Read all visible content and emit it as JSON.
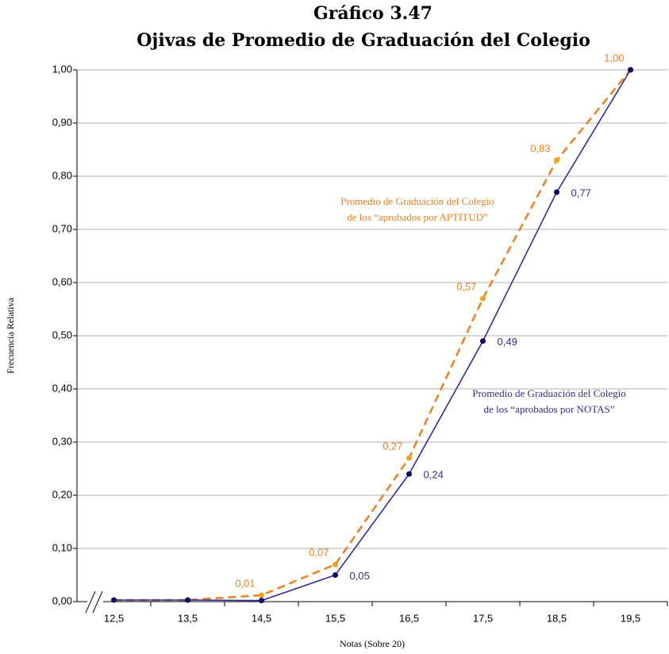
{
  "chart_data": {
    "type": "line",
    "title": [
      "Gráfico 3.47",
      "Ojivas de Promedio de Graduación del Colegio"
    ],
    "x_label": "Notas (Sobre 20)",
    "y_label": "Frecuencia Relativa",
    "categories": [
      "12,5",
      "13,5",
      "14,5",
      "15,5",
      "16,5",
      "17,5",
      "18,5",
      "19,5"
    ],
    "ylim": [
      0,
      1
    ],
    "yticks": [
      {
        "value": 0,
        "label": "0,00"
      },
      {
        "value": 0.1,
        "label": "0,10"
      },
      {
        "value": 0.2,
        "label": "0,20"
      },
      {
        "value": 0.3,
        "label": "0,30"
      },
      {
        "value": 0.4,
        "label": "0,40"
      },
      {
        "value": 0.5,
        "label": "0,50"
      },
      {
        "value": 0.6,
        "label": "0,60"
      },
      {
        "value": 0.7,
        "label": "0,70"
      },
      {
        "value": 0.8,
        "label": "0,80"
      },
      {
        "value": 0.9,
        "label": "0,90"
      },
      {
        "value": 1,
        "label": "1,00"
      }
    ],
    "grid": true,
    "series": [
      {
        "label_lines": [
          "Promedio de Graduación del Colegio",
          "de los “aprobados por APTITUD”"
        ],
        "color": "#f07f1f",
        "marker_color": "#f5a11a",
        "dashed": true,
        "values": [
          0.003,
          0.003,
          0.012,
          0.07,
          0.27,
          0.57,
          0.83,
          1.0
        ],
        "value_labels": [
          null,
          null,
          "0,01",
          "0,07",
          "0,27",
          "0,57",
          "0,83",
          "1,00"
        ]
      },
      {
        "label_lines": [
          "Promedio de Graduación del Colegio",
          "de los “aprobados por NOTAS”"
        ],
        "color": "#2e2e94",
        "marker_color": "#0a0a6e",
        "dashed": false,
        "values": [
          0.003,
          0.003,
          0.002,
          0.05,
          0.24,
          0.49,
          0.77,
          1.0
        ],
        "value_labels": [
          null,
          null,
          null,
          "0,05",
          "0,24",
          "0,49",
          "0,77",
          null
        ]
      }
    ]
  }
}
